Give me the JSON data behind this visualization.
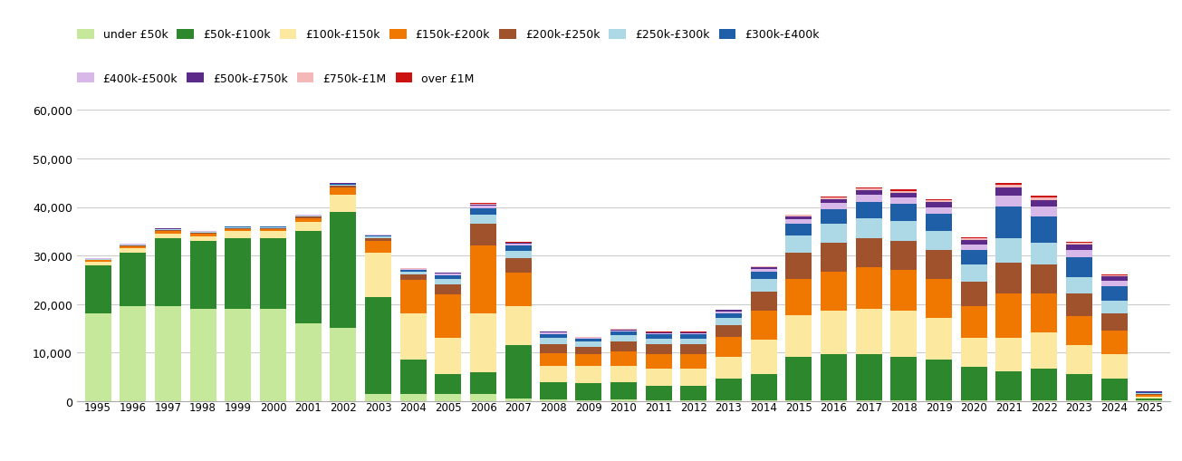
{
  "years": [
    1995,
    1996,
    1997,
    1998,
    1999,
    2000,
    2001,
    2002,
    2003,
    2004,
    2005,
    2006,
    2007,
    2008,
    2009,
    2010,
    2011,
    2012,
    2013,
    2014,
    2015,
    2016,
    2017,
    2018,
    2019,
    2020,
    2021,
    2022,
    2023,
    2024,
    2025
  ],
  "categories": [
    "under £50k",
    "£50k-£100k",
    "£100k-£150k",
    "£150k-£200k",
    "£200k-£250k",
    "£250k-£300k",
    "£300k-£400k",
    "£400k-£500k",
    "£500k-£750k",
    "£750k-£1M",
    "over £1M"
  ],
  "colors": [
    "#c5e89a",
    "#2d882d",
    "#fde8a0",
    "#f07800",
    "#a0522d",
    "#add8e6",
    "#1e5fa8",
    "#d8b8e8",
    "#5c2b8a",
    "#f5b8b8",
    "#cc1111"
  ],
  "data": {
    "under £50k": [
      18000,
      19500,
      19500,
      19000,
      19000,
      19000,
      16000,
      15000,
      1500,
      1500,
      1500,
      1500,
      500,
      300,
      200,
      300,
      200,
      200,
      150,
      100,
      100,
      80,
      80,
      80,
      80,
      100,
      80,
      80,
      80,
      80,
      100
    ],
    "£50k-£100k": [
      10000,
      11000,
      14000,
      14000,
      14500,
      14500,
      19000,
      24000,
      20000,
      7000,
      4000,
      4500,
      11000,
      3500,
      3500,
      3500,
      3000,
      3000,
      4500,
      5500,
      9000,
      9500,
      9500,
      9000,
      8500,
      7000,
      6000,
      6500,
      5500,
      4500,
      400
    ],
    "£100k-£150k": [
      700,
      1000,
      1000,
      1000,
      1500,
      1500,
      2000,
      3500,
      9000,
      9500,
      7500,
      12000,
      8000,
      3500,
      3500,
      3500,
      3500,
      3500,
      4500,
      7000,
      8500,
      9000,
      9500,
      9500,
      8500,
      6000,
      7000,
      7500,
      6000,
      5000,
      400
    ],
    "£150k-£200k": [
      300,
      400,
      500,
      500,
      500,
      500,
      700,
      1500,
      2500,
      7000,
      9000,
      14000,
      7000,
      2500,
      2500,
      3000,
      3000,
      3000,
      4000,
      6000,
      7500,
      8000,
      8500,
      8500,
      8000,
      6500,
      9000,
      8000,
      6000,
      5000,
      300
    ],
    "£200k-£250k": [
      150,
      200,
      200,
      200,
      200,
      200,
      250,
      300,
      500,
      1000,
      2000,
      4500,
      3000,
      2000,
      1500,
      2000,
      2000,
      2000,
      2500,
      4000,
      5500,
      6000,
      6000,
      6000,
      6000,
      5000,
      6500,
      6000,
      4500,
      3500,
      250
    ],
    "£250k-£300k": [
      100,
      120,
      150,
      150,
      150,
      150,
      200,
      250,
      350,
      600,
      1200,
      2000,
      1500,
      1200,
      1000,
      1200,
      1200,
      1200,
      1500,
      2500,
      3500,
      4000,
      4000,
      4000,
      4000,
      3500,
      5000,
      4500,
      3500,
      2500,
      150
    ],
    "£300k-£400k": [
      80,
      100,
      100,
      100,
      100,
      100,
      150,
      200,
      250,
      400,
      700,
      1200,
      1000,
      800,
      600,
      800,
      800,
      800,
      1000,
      1500,
      2500,
      3000,
      3500,
      3500,
      3500,
      3000,
      6500,
      5500,
      4000,
      3000,
      200
    ],
    "£400k-£500k": [
      40,
      50,
      50,
      50,
      50,
      50,
      60,
      80,
      120,
      180,
      300,
      500,
      350,
      250,
      180,
      250,
      250,
      250,
      350,
      600,
      900,
      1200,
      1400,
      1400,
      1400,
      1200,
      2200,
      2000,
      1500,
      1200,
      80
    ],
    "£500k-£750k": [
      25,
      30,
      30,
      30,
      30,
      30,
      40,
      60,
      80,
      120,
      200,
      350,
      250,
      180,
      120,
      170,
      170,
      170,
      230,
      400,
      600,
      800,
      1000,
      1000,
      1000,
      900,
      1700,
      1400,
      1100,
      900,
      60
    ],
    "£750k-£1M": [
      12,
      15,
      15,
      15,
      15,
      15,
      20,
      25,
      35,
      50,
      80,
      140,
      100,
      70,
      50,
      70,
      70,
      70,
      100,
      160,
      220,
      300,
      350,
      350,
      350,
      320,
      600,
      500,
      400,
      300,
      25
    ],
    "over £1M": [
      8,
      10,
      10,
      10,
      10,
      10,
      12,
      16,
      22,
      30,
      55,
      90,
      65,
      45,
      30,
      45,
      45,
      45,
      60,
      100,
      140,
      200,
      230,
      230,
      230,
      210,
      380,
      320,
      250,
      200,
      16
    ]
  },
  "ylim": [
    0,
    60000
  ],
  "yticks": [
    0,
    10000,
    20000,
    30000,
    40000,
    50000,
    60000
  ],
  "background_color": "#ffffff",
  "grid_color": "#cccccc"
}
